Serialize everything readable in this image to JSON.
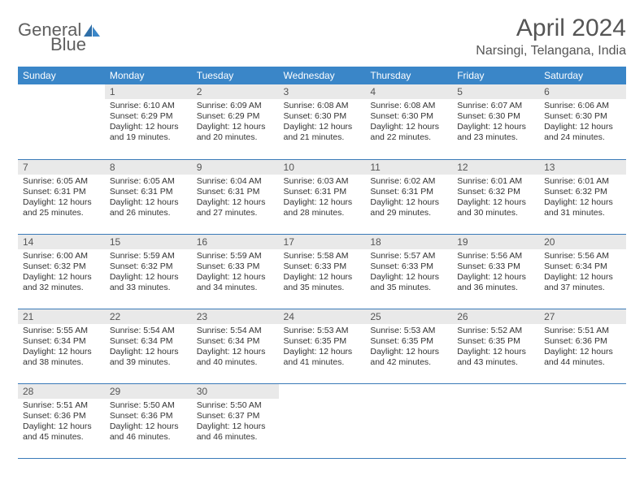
{
  "logo": {
    "word1": "General",
    "word2": "Blue"
  },
  "title": "April 2024",
  "location": "Narsingi, Telangana, India",
  "colors": {
    "header_bg": "#3a86c8",
    "header_text": "#ffffff",
    "daynum_bg": "#e9e9e9",
    "row_border": "#3a7ab8",
    "body_text": "#333333",
    "title_text": "#555555",
    "logo_gray": "#5f5f5f",
    "logo_blue": "#3a7ab8",
    "page_bg": "#ffffff"
  },
  "typography": {
    "title_fontsize": 30,
    "location_fontsize": 16,
    "header_fontsize": 12,
    "daynum_fontsize": 12,
    "body_fontsize": 10.5
  },
  "weekdays": [
    "Sunday",
    "Monday",
    "Tuesday",
    "Wednesday",
    "Thursday",
    "Friday",
    "Saturday"
  ],
  "weeks": [
    [
      {
        "empty": true
      },
      {
        "n": "1",
        "sr": "Sunrise: 6:10 AM",
        "ss": "Sunset: 6:29 PM",
        "dl": "Daylight: 12 hours and 19 minutes."
      },
      {
        "n": "2",
        "sr": "Sunrise: 6:09 AM",
        "ss": "Sunset: 6:29 PM",
        "dl": "Daylight: 12 hours and 20 minutes."
      },
      {
        "n": "3",
        "sr": "Sunrise: 6:08 AM",
        "ss": "Sunset: 6:30 PM",
        "dl": "Daylight: 12 hours and 21 minutes."
      },
      {
        "n": "4",
        "sr": "Sunrise: 6:08 AM",
        "ss": "Sunset: 6:30 PM",
        "dl": "Daylight: 12 hours and 22 minutes."
      },
      {
        "n": "5",
        "sr": "Sunrise: 6:07 AM",
        "ss": "Sunset: 6:30 PM",
        "dl": "Daylight: 12 hours and 23 minutes."
      },
      {
        "n": "6",
        "sr": "Sunrise: 6:06 AM",
        "ss": "Sunset: 6:30 PM",
        "dl": "Daylight: 12 hours and 24 minutes."
      }
    ],
    [
      {
        "n": "7",
        "sr": "Sunrise: 6:05 AM",
        "ss": "Sunset: 6:31 PM",
        "dl": "Daylight: 12 hours and 25 minutes."
      },
      {
        "n": "8",
        "sr": "Sunrise: 6:05 AM",
        "ss": "Sunset: 6:31 PM",
        "dl": "Daylight: 12 hours and 26 minutes."
      },
      {
        "n": "9",
        "sr": "Sunrise: 6:04 AM",
        "ss": "Sunset: 6:31 PM",
        "dl": "Daylight: 12 hours and 27 minutes."
      },
      {
        "n": "10",
        "sr": "Sunrise: 6:03 AM",
        "ss": "Sunset: 6:31 PM",
        "dl": "Daylight: 12 hours and 28 minutes."
      },
      {
        "n": "11",
        "sr": "Sunrise: 6:02 AM",
        "ss": "Sunset: 6:31 PM",
        "dl": "Daylight: 12 hours and 29 minutes."
      },
      {
        "n": "12",
        "sr": "Sunrise: 6:01 AM",
        "ss": "Sunset: 6:32 PM",
        "dl": "Daylight: 12 hours and 30 minutes."
      },
      {
        "n": "13",
        "sr": "Sunrise: 6:01 AM",
        "ss": "Sunset: 6:32 PM",
        "dl": "Daylight: 12 hours and 31 minutes."
      }
    ],
    [
      {
        "n": "14",
        "sr": "Sunrise: 6:00 AM",
        "ss": "Sunset: 6:32 PM",
        "dl": "Daylight: 12 hours and 32 minutes."
      },
      {
        "n": "15",
        "sr": "Sunrise: 5:59 AM",
        "ss": "Sunset: 6:32 PM",
        "dl": "Daylight: 12 hours and 33 minutes."
      },
      {
        "n": "16",
        "sr": "Sunrise: 5:59 AM",
        "ss": "Sunset: 6:33 PM",
        "dl": "Daylight: 12 hours and 34 minutes."
      },
      {
        "n": "17",
        "sr": "Sunrise: 5:58 AM",
        "ss": "Sunset: 6:33 PM",
        "dl": "Daylight: 12 hours and 35 minutes."
      },
      {
        "n": "18",
        "sr": "Sunrise: 5:57 AM",
        "ss": "Sunset: 6:33 PM",
        "dl": "Daylight: 12 hours and 35 minutes."
      },
      {
        "n": "19",
        "sr": "Sunrise: 5:56 AM",
        "ss": "Sunset: 6:33 PM",
        "dl": "Daylight: 12 hours and 36 minutes."
      },
      {
        "n": "20",
        "sr": "Sunrise: 5:56 AM",
        "ss": "Sunset: 6:34 PM",
        "dl": "Daylight: 12 hours and 37 minutes."
      }
    ],
    [
      {
        "n": "21",
        "sr": "Sunrise: 5:55 AM",
        "ss": "Sunset: 6:34 PM",
        "dl": "Daylight: 12 hours and 38 minutes."
      },
      {
        "n": "22",
        "sr": "Sunrise: 5:54 AM",
        "ss": "Sunset: 6:34 PM",
        "dl": "Daylight: 12 hours and 39 minutes."
      },
      {
        "n": "23",
        "sr": "Sunrise: 5:54 AM",
        "ss": "Sunset: 6:34 PM",
        "dl": "Daylight: 12 hours and 40 minutes."
      },
      {
        "n": "24",
        "sr": "Sunrise: 5:53 AM",
        "ss": "Sunset: 6:35 PM",
        "dl": "Daylight: 12 hours and 41 minutes."
      },
      {
        "n": "25",
        "sr": "Sunrise: 5:53 AM",
        "ss": "Sunset: 6:35 PM",
        "dl": "Daylight: 12 hours and 42 minutes."
      },
      {
        "n": "26",
        "sr": "Sunrise: 5:52 AM",
        "ss": "Sunset: 6:35 PM",
        "dl": "Daylight: 12 hours and 43 minutes."
      },
      {
        "n": "27",
        "sr": "Sunrise: 5:51 AM",
        "ss": "Sunset: 6:36 PM",
        "dl": "Daylight: 12 hours and 44 minutes."
      }
    ],
    [
      {
        "n": "28",
        "sr": "Sunrise: 5:51 AM",
        "ss": "Sunset: 6:36 PM",
        "dl": "Daylight: 12 hours and 45 minutes."
      },
      {
        "n": "29",
        "sr": "Sunrise: 5:50 AM",
        "ss": "Sunset: 6:36 PM",
        "dl": "Daylight: 12 hours and 46 minutes."
      },
      {
        "n": "30",
        "sr": "Sunrise: 5:50 AM",
        "ss": "Sunset: 6:37 PM",
        "dl": "Daylight: 12 hours and 46 minutes."
      },
      {
        "empty": true
      },
      {
        "empty": true
      },
      {
        "empty": true
      },
      {
        "empty": true
      }
    ]
  ]
}
